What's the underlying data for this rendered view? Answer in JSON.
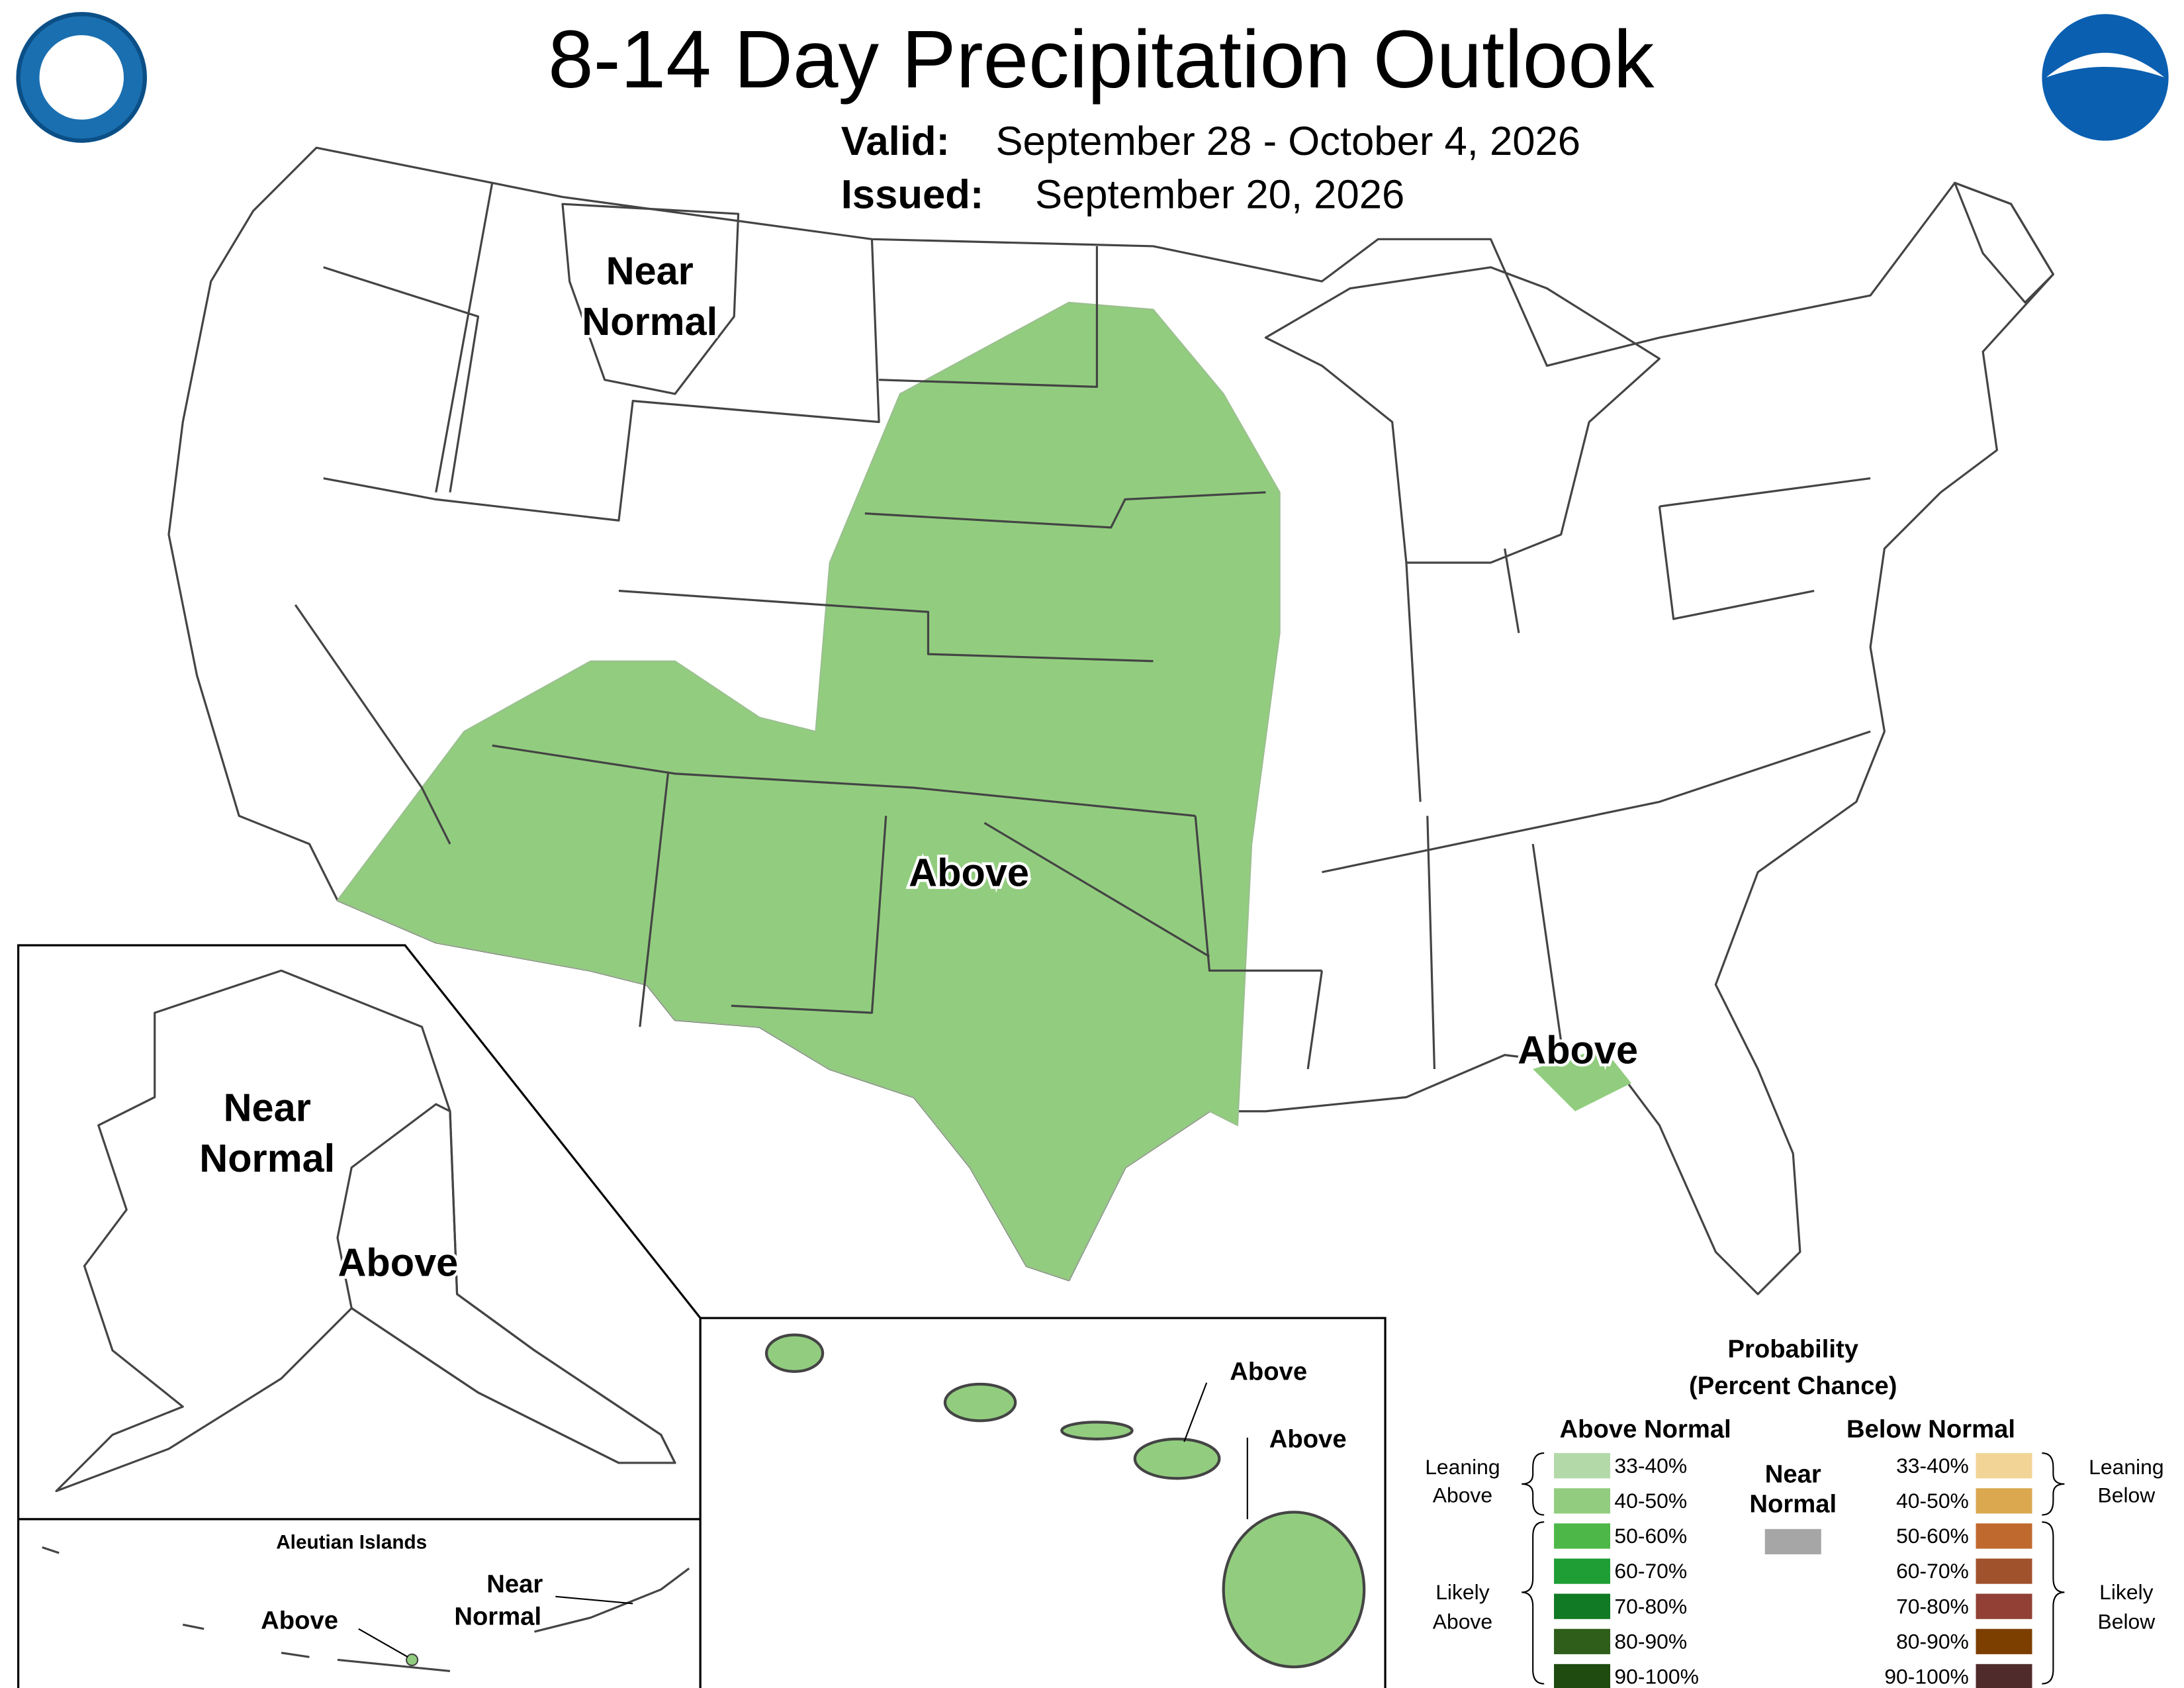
{
  "header": {
    "title": "8-14 Day Precipitation Outlook",
    "valid_label": "Valid:",
    "valid": "September 28 - October 4, 2026",
    "issued_label": "Issued:",
    "issued": "September 20, 2026"
  },
  "conus": {
    "labels": [
      {
        "lines": [
          "Near",
          "Normal"
        ]
      },
      {
        "lines": [
          "Above"
        ]
      },
      {
        "lines": [
          "Above"
        ]
      }
    ]
  },
  "alaska": {
    "labels": [
      {
        "lines": [
          "Near",
          "Normal"
        ]
      },
      {
        "lines": [
          "Above"
        ]
      }
    ]
  },
  "aleutians": {
    "title": "Aleutian Islands",
    "labels": [
      {
        "lines": [
          "Above"
        ]
      },
      {
        "lines": [
          "Near",
          "Normal"
        ]
      }
    ]
  },
  "hawaii": {
    "labels": [
      {
        "lines": [
          "Above"
        ]
      },
      {
        "lines": [
          "Above"
        ]
      }
    ]
  },
  "legend": {
    "title": [
      "Probability",
      "(Percent Chance)"
    ],
    "above_header": "Above Normal",
    "below_header": "Below Normal",
    "above_ranges": [
      "33-40%",
      "40-50%",
      "50-60%",
      "60-70%",
      "70-80%",
      "80-90%",
      "90-100%"
    ],
    "below_ranges": [
      "33-40%",
      "40-50%",
      "50-60%",
      "60-70%",
      "70-80%",
      "80-90%",
      "90-100%"
    ],
    "near_normal": [
      "Near",
      "Normal"
    ],
    "leaning_above": [
      "Leaning",
      "Above"
    ],
    "likely_above": [
      "Likely",
      "Above"
    ],
    "leaning_below": [
      "Leaning",
      "Below"
    ],
    "likely_below": [
      "Likely",
      "Below"
    ]
  }
}
